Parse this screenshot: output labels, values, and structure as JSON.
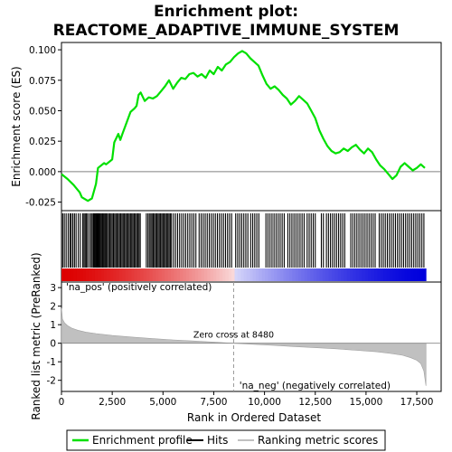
{
  "chart_data": {
    "type": "line",
    "title_line1": "Enrichment plot:",
    "title_line2": "REACTOME_ADAPTIVE_IMMUNE_SYSTEM",
    "top_panel": {
      "ylabel": "Enrichment score (ES)",
      "ylim": [
        -0.032,
        0.106
      ],
      "yticks": [
        -0.025,
        0.0,
        0.025,
        0.05,
        0.075,
        0.1
      ],
      "ytick_labels": [
        "-0.025",
        "0.000",
        "0.025",
        "0.050",
        "0.075",
        "0.100"
      ],
      "series": [
        {
          "name": "Enrichment profile",
          "color": "#00e000",
          "x": [
            0,
            300,
            600,
            900,
            1000,
            1300,
            1500,
            1700,
            1800,
            2100,
            2200,
            2500,
            2600,
            2800,
            2900,
            3000,
            3200,
            3400,
            3600,
            3700,
            3800,
            3900,
            4100,
            4300,
            4500,
            4700,
            4900,
            5100,
            5300,
            5500,
            5700,
            5900,
            6100,
            6300,
            6500,
            6700,
            6900,
            7100,
            7300,
            7500,
            7700,
            7900,
            8100,
            8300,
            8500,
            8700,
            8900,
            9100,
            9300,
            9500,
            9700,
            9900,
            10100,
            10300,
            10500,
            10700,
            10900,
            11100,
            11300,
            11500,
            11700,
            11900,
            12100,
            12300,
            12500,
            12700,
            12900,
            13100,
            13300,
            13500,
            13700,
            13900,
            14100,
            14300,
            14500,
            14700,
            14900,
            15100,
            15300,
            15500,
            15700,
            15900,
            16100,
            16300,
            16500,
            16700,
            16900,
            17100,
            17300,
            17500,
            17700,
            17900
          ],
          "y": [
            -0.002,
            -0.006,
            -0.011,
            -0.017,
            -0.021,
            -0.024,
            -0.022,
            -0.01,
            0.003,
            0.007,
            0.006,
            0.01,
            0.024,
            0.031,
            0.026,
            0.031,
            0.04,
            0.049,
            0.052,
            0.054,
            0.063,
            0.065,
            0.058,
            0.061,
            0.06,
            0.062,
            0.066,
            0.07,
            0.075,
            0.068,
            0.073,
            0.077,
            0.076,
            0.08,
            0.081,
            0.078,
            0.08,
            0.077,
            0.083,
            0.08,
            0.086,
            0.083,
            0.088,
            0.09,
            0.094,
            0.097,
            0.099,
            0.097,
            0.093,
            0.09,
            0.087,
            0.079,
            0.072,
            0.068,
            0.07,
            0.067,
            0.063,
            0.06,
            0.055,
            0.058,
            0.062,
            0.059,
            0.056,
            0.05,
            0.044,
            0.034,
            0.027,
            0.021,
            0.017,
            0.015,
            0.016,
            0.019,
            0.017,
            0.02,
            0.022,
            0.018,
            0.015,
            0.019,
            0.016,
            0.01,
            0.005,
            0.002,
            -0.002,
            -0.006,
            -0.003,
            0.004,
            0.007,
            0.004,
            0.001,
            0.003,
            0.006,
            0.003
          ]
        }
      ]
    },
    "hits_panel": {
      "name": "Hits",
      "color": "#000000",
      "hit_ranks": [
        60,
        140,
        230,
        330,
        420,
        480,
        560,
        640,
        720,
        830,
        930,
        1050,
        1110,
        1170,
        1230,
        1290,
        1380,
        1460,
        1520,
        1580,
        1620,
        1660,
        1700,
        1740,
        1780,
        1820,
        1860,
        1900,
        1950,
        2000,
        2050,
        2100,
        2150,
        2200,
        2260,
        2320,
        2380,
        2440,
        2500,
        2560,
        2620,
        2680,
        2740,
        2800,
        2860,
        2920,
        2980,
        3040,
        3100,
        3160,
        3220,
        3280,
        3340,
        3400,
        3460,
        3520,
        3580,
        3640,
        3700,
        3760,
        3820,
        3880,
        4180,
        4260,
        4330,
        4400,
        4460,
        4520,
        4580,
        4640,
        4700,
        4760,
        4820,
        4880,
        4940,
        5000,
        5060,
        5120,
        5180,
        5240,
        5300,
        5360,
        5420,
        5520,
        5620,
        5720,
        5820,
        5920,
        6020,
        6120,
        6220,
        6320,
        6420,
        6520,
        6620,
        6780,
        6880,
        6980,
        7080,
        7180,
        7280,
        7380,
        7480,
        7580,
        7680,
        7780,
        7880,
        7980,
        8080,
        8180,
        8280,
        8380,
        8580,
        8680,
        8780,
        8880,
        8980,
        9080,
        9180,
        9320,
        9420,
        9520,
        9620,
        9720,
        10070,
        10170,
        10270,
        10370,
        10470,
        10570,
        10670,
        10770,
        10870,
        10970,
        11150,
        11250,
        11350,
        11450,
        11550,
        11650,
        11750,
        11850,
        11950,
        12100,
        12200,
        12300,
        12400,
        12500,
        12800,
        12900,
        13050,
        13150,
        13250,
        13350,
        13450,
        13550,
        13650,
        13750,
        13850,
        13950,
        14250,
        14350,
        14450,
        14550,
        14650,
        14750,
        14850,
        14950,
        15050,
        15150,
        15250,
        15350,
        15450,
        15650,
        15750,
        15850,
        15950,
        16050,
        16150,
        16250,
        16350,
        16450,
        16550,
        16650,
        16750,
        16850,
        16950,
        17050,
        17150,
        17250,
        17350,
        17450,
        17550,
        17650,
        17750,
        17850
      ]
    },
    "ranking_bar": {
      "pos_color": "#dd0000",
      "mid_color": "#ffffff",
      "neg_color": "#0000dd",
      "label_pos": "'na_pos' (positively correlated)",
      "label_neg": "'na_neg' (negatively correlated)",
      "label_pos_color": "#dd0000",
      "label_neg_color": "#0000dd"
    },
    "metric_panel": {
      "name": "Ranking metric scores",
      "color": "#c0c0c0",
      "ylabel": "Ranked list metric (PreRanked)",
      "ylim": [
        -2.6,
        3.3
      ],
      "yticks": [
        -2,
        -1,
        0,
        1,
        2,
        3
      ],
      "ytick_labels": [
        "-2",
        "-1",
        "0",
        "1",
        "2",
        "3"
      ],
      "x": [
        0,
        50,
        150,
        300,
        500,
        800,
        1200,
        1700,
        2500,
        3500,
        4500,
        5500,
        6500,
        7500,
        8480,
        9500,
        10500,
        11500,
        12500,
        13500,
        14500,
        15500,
        16200,
        16800,
        17200,
        17500,
        17700,
        17850,
        17950
      ],
      "y": [
        1.9,
        1.3,
        1.1,
        0.95,
        0.82,
        0.7,
        0.6,
        0.52,
        0.42,
        0.33,
        0.25,
        0.18,
        0.12,
        0.06,
        0.0,
        -0.06,
        -0.12,
        -0.18,
        -0.24,
        -0.3,
        -0.38,
        -0.46,
        -0.55,
        -0.65,
        -0.78,
        -0.92,
        -1.1,
        -1.5,
        -2.3
      ],
      "zero_cross_rank": 8480,
      "zero_cross_label": "Zero cross at 8480"
    },
    "x_axis": {
      "label": "Rank in Ordered Dataset",
      "xlim": [
        0,
        18700
      ],
      "ticks": [
        0,
        2500,
        5000,
        7500,
        10000,
        12500,
        15000,
        17500
      ],
      "tick_labels": [
        "0",
        "2,500",
        "5,000",
        "7,500",
        "10,000",
        "12,500",
        "15,000",
        "17,500"
      ]
    },
    "legend": {
      "items": [
        {
          "label": "Enrichment profile",
          "color": "#00e000"
        },
        {
          "label": "Hits",
          "color": "#000000"
        },
        {
          "label": "Ranking metric scores",
          "color": "#c0c0c0"
        }
      ],
      "placement": "bottom"
    }
  }
}
